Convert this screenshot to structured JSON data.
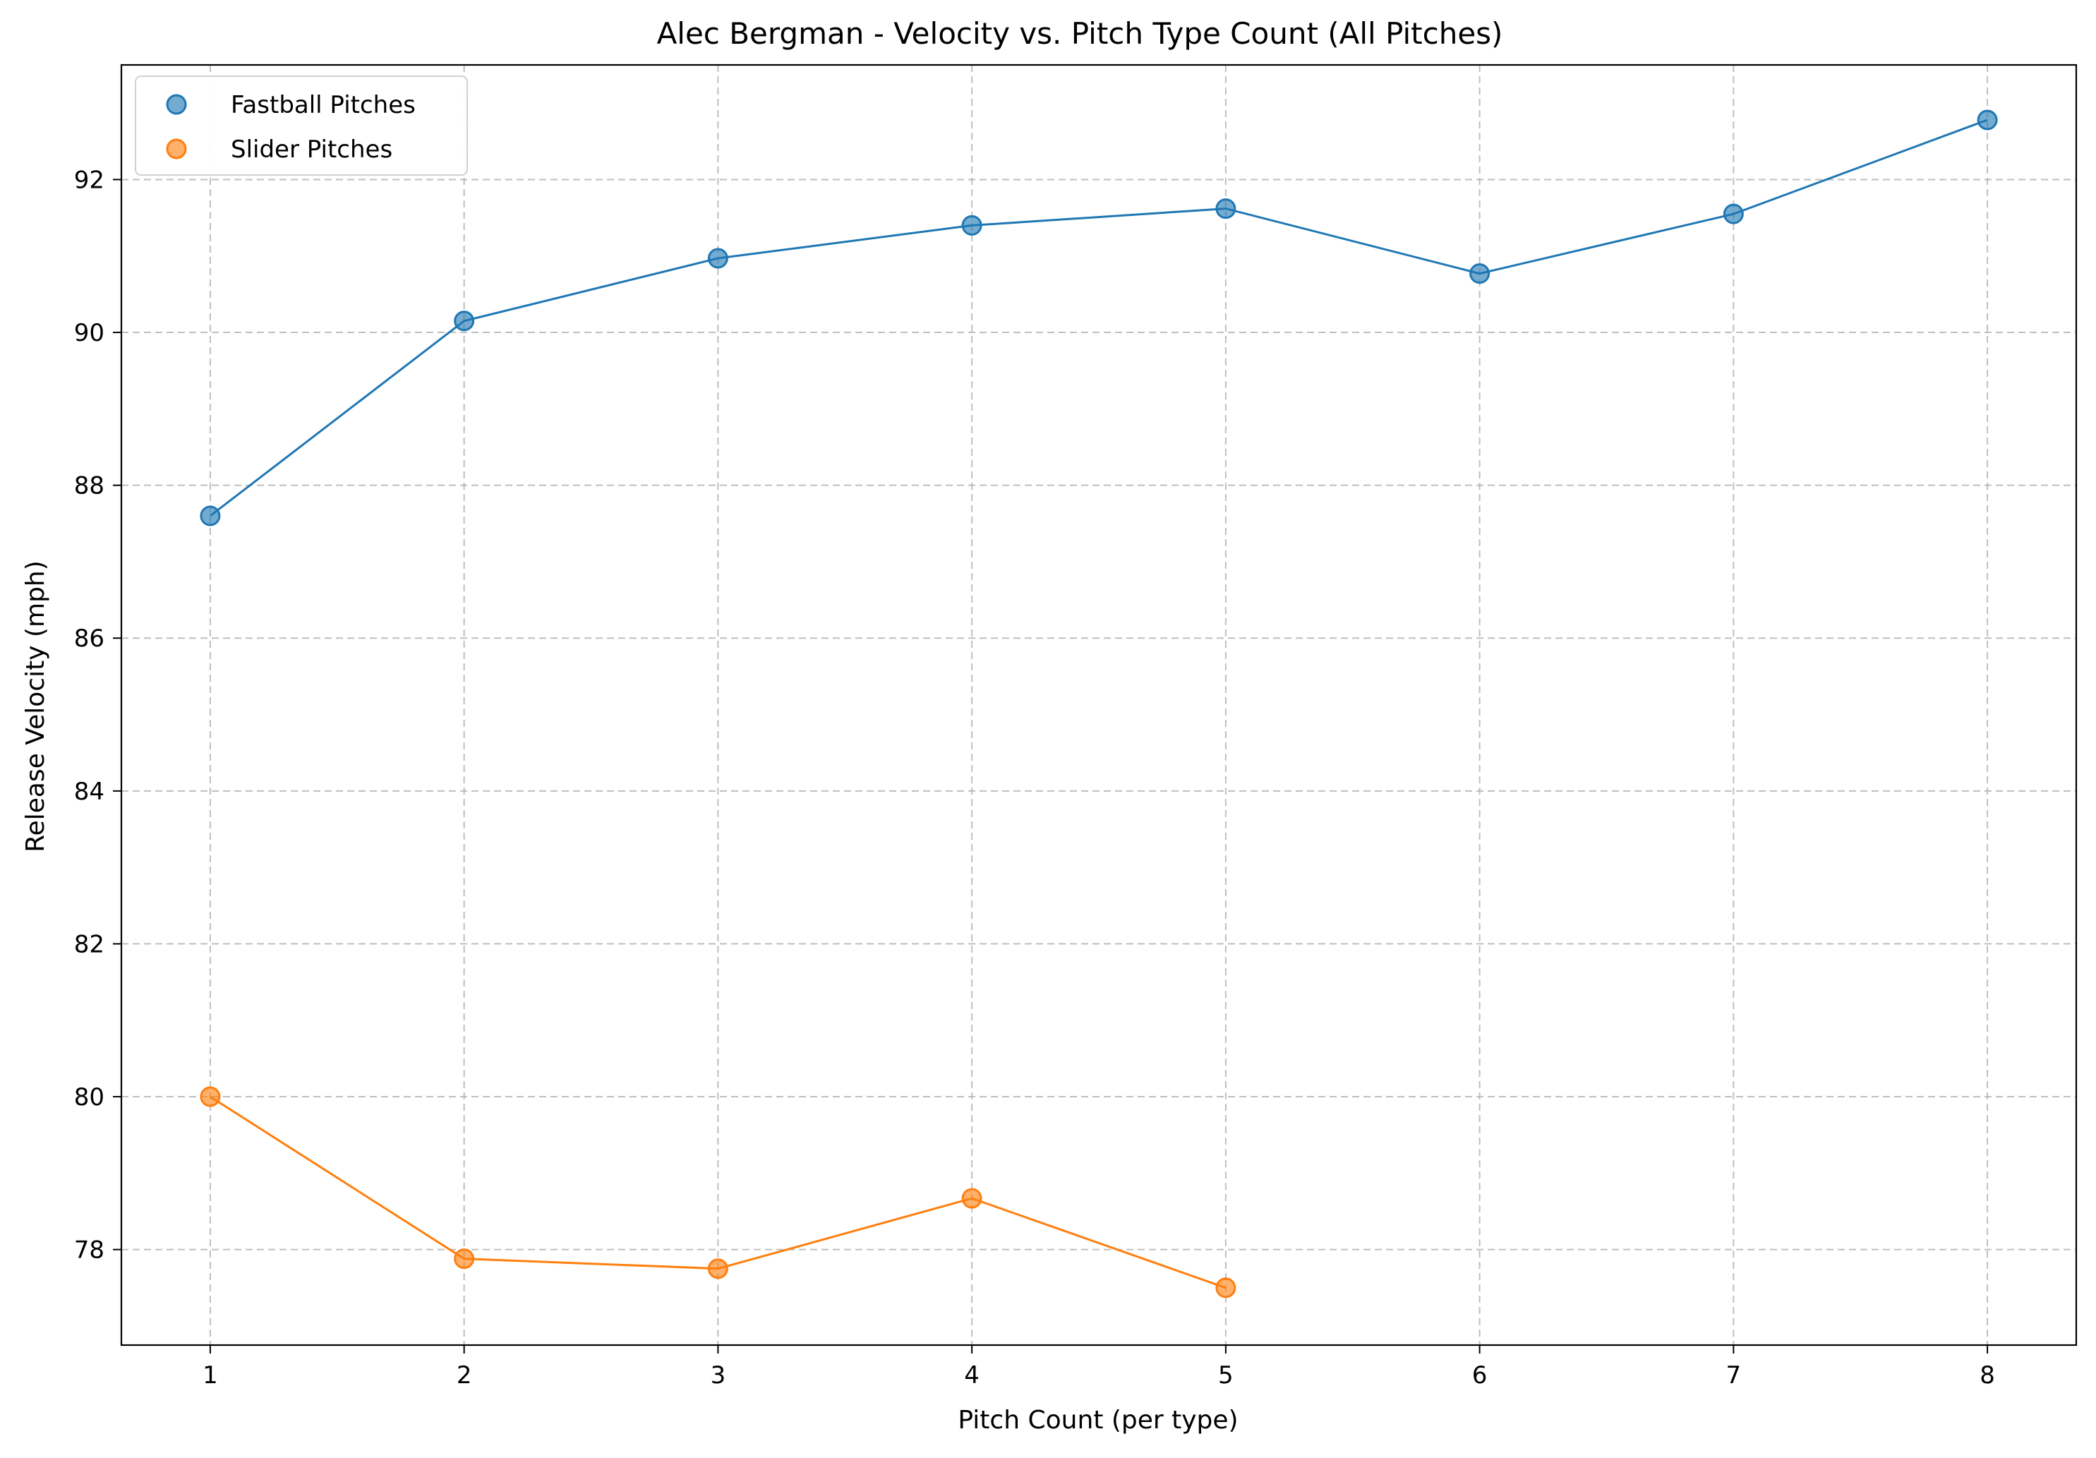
{
  "chart_data": {
    "type": "scatter",
    "title": "Alec Bergman - Velocity vs. Pitch Type Count (All Pitches)",
    "xlabel": "Pitch Count (per type)",
    "ylabel": "Release Velocity (mph)",
    "xlim": [
      0.65,
      8.35
    ],
    "ylim": [
      76.75,
      93.5
    ],
    "xticks": [
      1,
      2,
      3,
      4,
      5,
      6,
      7,
      8
    ],
    "yticks": [
      78,
      80,
      82,
      84,
      86,
      88,
      90,
      92
    ],
    "grid": true,
    "legend_position": "top-left",
    "series": [
      {
        "name": "Fastball Pitches",
        "color": "#1f77b4",
        "x": [
          1,
          2,
          3,
          4,
          5,
          6,
          7,
          8
        ],
        "y": [
          87.6,
          90.15,
          90.97,
          91.4,
          91.62,
          90.77,
          91.55,
          92.78
        ]
      },
      {
        "name": "Slider Pitches",
        "color": "#ff7f0e",
        "x": [
          1,
          2,
          3,
          4,
          5
        ],
        "y": [
          80.0,
          77.88,
          77.75,
          78.67,
          77.5
        ]
      }
    ]
  }
}
